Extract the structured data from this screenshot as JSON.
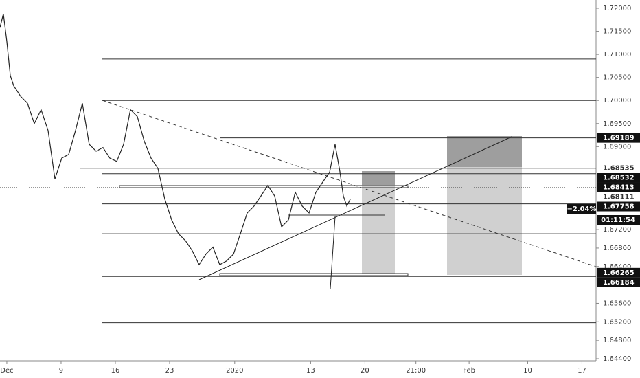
{
  "chart_data": {
    "type": "line",
    "x": [
      -0.63,
      -0.32,
      0,
      0.32,
      0.63,
      1.27,
      1.9,
      2.53,
      3.16,
      3.8,
      4.43,
      5.06,
      5.7,
      6.33,
      6.96,
      7.59,
      8.23,
      8.86,
      9.49,
      10.13,
      10.76,
      11.39,
      12.03,
      12.66,
      13.29,
      13.92,
      14.56,
      15.19,
      15.82,
      16.46,
      17.09,
      17.72,
      18.35,
      18.99,
      19.62,
      20.25,
      20.89,
      21.52,
      22.15,
      22.78,
      23.42,
      24.05,
      24.68,
      25.32,
      25.95,
      26.58,
      27.22,
      27.85,
      28.48,
      29.11,
      29.75,
      30.25,
      30.7,
      31.01,
      31.33,
      31.65
    ],
    "series": [
      {
        "color": "#222222",
        "values": [
          1.7158,
          1.7188,
          1.7128,
          1.7054,
          1.7032,
          1.7009,
          1.6994,
          1.695,
          1.698,
          1.6935,
          1.683,
          1.6875,
          1.6883,
          1.6935,
          1.6994,
          1.6905,
          1.689,
          1.6898,
          1.6875,
          1.6868,
          1.6905,
          1.698,
          1.6965,
          1.6912,
          1.6875,
          1.6853,
          1.6786,
          1.6741,
          1.6711,
          1.6696,
          1.6674,
          1.6644,
          1.6667,
          1.6682,
          1.6644,
          1.6652,
          1.6667,
          1.6711,
          1.6756,
          1.6771,
          1.6793,
          1.6816,
          1.6793,
          1.6726,
          1.6741,
          1.6801,
          1.6771,
          1.6756,
          1.6801,
          1.6823,
          1.6845,
          1.6905,
          1.6845,
          1.6793,
          1.6771,
          1.6786
        ]
      }
    ],
    "xlim": [
      -0.63,
      54.3
    ],
    "xticks": [
      {
        "value": 0,
        "label": "Dec"
      },
      {
        "value": 5,
        "label": "9"
      },
      {
        "value": 10,
        "label": "16"
      },
      {
        "value": 15,
        "label": "23"
      },
      {
        "value": 21,
        "label": "2020"
      },
      {
        "value": 28,
        "label": "13"
      },
      {
        "value": 33,
        "label": "20"
      },
      {
        "value": 37.7,
        "label": "21:00"
      },
      {
        "value": 42.6,
        "label": "Feb"
      },
      {
        "value": 48,
        "label": "10"
      },
      {
        "value": 53,
        "label": "17"
      }
    ],
    "ylim": [
      1.64355,
      1.72179
    ],
    "yticks": [
      {
        "value": 1.72,
        "label": "1.72000"
      },
      {
        "value": 1.715,
        "label": "1.71500"
      },
      {
        "value": 1.71,
        "label": "1.71000"
      },
      {
        "value": 1.705,
        "label": "1.70500"
      },
      {
        "value": 1.7,
        "label": "1.70000"
      },
      {
        "value": 1.695,
        "label": "1.69500"
      },
      {
        "value": 1.69,
        "label": "1.69000"
      },
      {
        "value": 1.672,
        "label": "1.67200"
      },
      {
        "value": 1.668,
        "label": "1.66800"
      },
      {
        "value": 1.664,
        "label": "1.66400"
      },
      {
        "value": 1.656,
        "label": "1.65600"
      },
      {
        "value": 1.652,
        "label": "1.65200"
      },
      {
        "value": 1.648,
        "label": "1.64800"
      },
      {
        "value": 1.644,
        "label": "1.64400"
      }
    ],
    "levels": [
      1.709,
      1.7,
      1.69189,
      1.68532,
      1.68413,
      1.67758,
      1.6711,
      1.66184,
      1.6518
    ],
    "price_labels": [
      {
        "value": 1.69189,
        "label": "1.69189",
        "boxed": true
      },
      {
        "value": 1.68532,
        "label": "1.68532",
        "boxed": true
      },
      {
        "value": 1.68535,
        "label": "1.68535",
        "boxed": false
      },
      {
        "value": 1.68413,
        "label": "1.68413",
        "boxed": true
      },
      {
        "value": 1.68111,
        "label": "1.68111",
        "boxed": false
      },
      {
        "value": 1.67758,
        "label": "1.67758",
        "boxed": true
      },
      {
        "value": 1.66265,
        "label": "1.66265",
        "boxed": true
      },
      {
        "value": 1.66184,
        "label": "1.66184",
        "boxed": true
      }
    ],
    "change": "−2.04%",
    "countdown": "01:11:54"
  }
}
